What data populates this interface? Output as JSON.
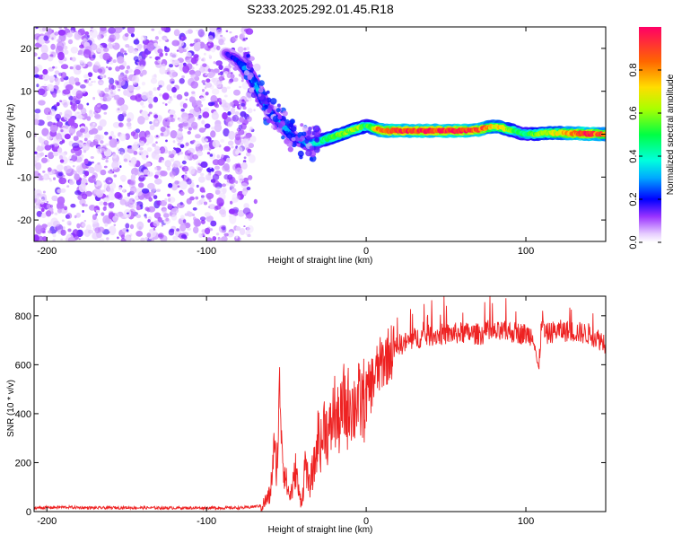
{
  "title": "S233.2025.292.01.45.R18",
  "chart_data": [
    {
      "type": "heatmap",
      "name": "spectrogram",
      "xlabel": "Height of straight line (km)",
      "ylabel": "Frequency (Hz)",
      "xlim": [
        -208,
        150
      ],
      "ylim": [
        -25,
        25
      ],
      "xticks": [
        -200,
        -100,
        0,
        100
      ],
      "xtick_labels": [
        "-200",
        "-100",
        "0",
        "100"
      ],
      "yticks": [
        -20,
        -10,
        0,
        10,
        20
      ],
      "ytick_labels": [
        "-20",
        "-10",
        "0",
        "10",
        "20"
      ],
      "colorbar": {
        "label": "Normalized spectral amplitude",
        "range": [
          0,
          1
        ],
        "ticks": [
          0.0,
          0.2,
          0.4,
          0.6,
          0.8
        ],
        "tick_labels": [
          "0.0",
          "0.2",
          "0.4",
          "0.6",
          "0.8"
        ]
      },
      "noise_region_x": [
        -208,
        -72
      ],
      "ridge": {
        "x": [
          -88,
          -80,
          -75,
          -70,
          -65,
          -60,
          -55,
          -50,
          -45,
          -40,
          -36,
          -32,
          -28,
          -24,
          -20,
          -16,
          -12,
          -8,
          -4,
          0,
          4,
          8,
          12,
          20,
          30,
          40,
          50,
          60,
          70,
          75,
          80,
          85,
          90,
          95,
          100,
          105,
          110,
          120,
          130,
          140,
          150
        ],
        "freq": [
          19,
          17,
          15,
          12,
          8,
          5,
          3,
          1,
          -1,
          -1.5,
          -2.5,
          -2,
          -1.5,
          -1,
          -0.5,
          0,
          0.5,
          1,
          1.5,
          2,
          1.5,
          1,
          0.8,
          0.8,
          0.8,
          0.8,
          0.8,
          0.8,
          1,
          1.5,
          1.8,
          1.5,
          1,
          0.5,
          0,
          0,
          0.2,
          0.3,
          0.2,
          0.1,
          0
        ],
        "amplitude": [
          0.15,
          0.22,
          0.3,
          0.35,
          0.28,
          0.25,
          0.3,
          0.32,
          0.22,
          0.28,
          0.35,
          0.4,
          0.45,
          0.5,
          0.55,
          0.58,
          0.6,
          0.65,
          0.62,
          0.5,
          0.6,
          0.85,
          0.9,
          0.95,
          0.95,
          0.95,
          0.95,
          0.95,
          0.9,
          0.85,
          0.7,
          0.75,
          0.6,
          0.5,
          0.45,
          0.55,
          0.6,
          0.7,
          0.85,
          0.95,
          0.8
        ]
      }
    },
    {
      "type": "line",
      "name": "snr",
      "xlabel": "Height of straight line (km)",
      "ylabel": "SNR (10 * v/v)",
      "xlim": [
        -208,
        150
      ],
      "ylim": [
        0,
        880
      ],
      "xticks": [
        -200,
        -100,
        0,
        100
      ],
      "xtick_labels": [
        "-200",
        "-100",
        "0",
        "100"
      ],
      "yticks": [
        0,
        200,
        400,
        600,
        800
      ],
      "ytick_labels": [
        "0",
        "200",
        "400",
        "600",
        "800"
      ],
      "color": "#ee2222",
      "series": [
        {
          "name": "SNR",
          "x": [
            -208,
            -190,
            -170,
            -150,
            -130,
            -110,
            -90,
            -75,
            -65,
            -60,
            -58,
            -56,
            -54,
            -52,
            -50,
            -48,
            -46,
            -44,
            -42,
            -40,
            -38,
            -36,
            -34,
            -32,
            -30,
            -28,
            -26,
            -24,
            -22,
            -20,
            -18,
            -16,
            -14,
            -12,
            -10,
            -8,
            -6,
            -4,
            -2,
            0,
            5,
            10,
            15,
            20,
            25,
            30,
            35,
            40,
            50,
            60,
            70,
            80,
            90,
            100,
            105,
            108,
            110,
            112,
            115,
            120,
            130,
            140,
            150
          ],
          "values": [
            15,
            18,
            15,
            16,
            15,
            15,
            15,
            16,
            25,
            70,
            250,
            180,
            500,
            200,
            120,
            60,
            100,
            180,
            60,
            50,
            220,
            90,
            150,
            200,
            320,
            260,
            380,
            300,
            340,
            420,
            360,
            380,
            440,
            400,
            480,
            410,
            470,
            430,
            450,
            470,
            550,
            610,
            650,
            680,
            690,
            705,
            715,
            720,
            725,
            730,
            725,
            730,
            735,
            725,
            720,
            560,
            800,
            720,
            730,
            740,
            735,
            725,
            690
          ]
        }
      ]
    }
  ]
}
